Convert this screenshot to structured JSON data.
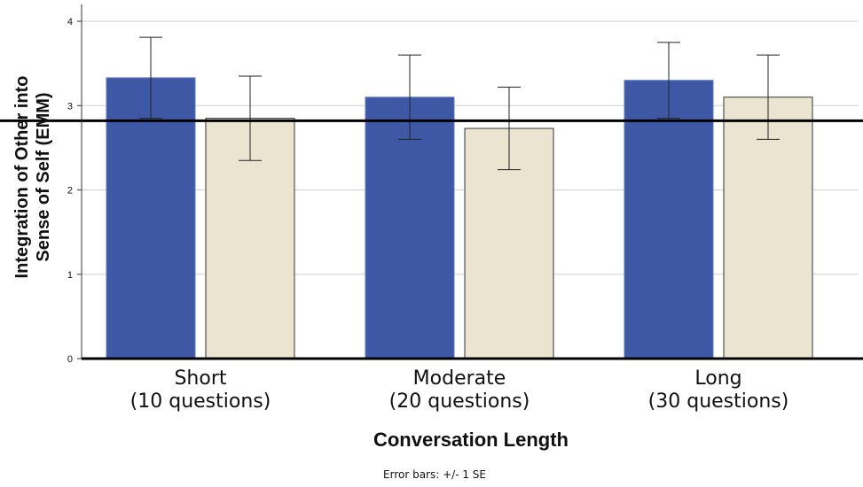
{
  "chart_data": {
    "type": "bar",
    "categories": [
      [
        "Short",
        "(10 questions)"
      ],
      [
        "Moderate",
        "(20 questions)"
      ],
      [
        "Long",
        "(30 questions)"
      ]
    ],
    "series": [
      {
        "color": "#3f58a6",
        "values": [
          3.33,
          3.1,
          3.3
        ],
        "se": [
          0.48,
          0.5,
          0.45
        ]
      },
      {
        "color": "#ebe4d1",
        "values": [
          2.85,
          2.73,
          3.1
        ],
        "se": [
          0.5,
          0.49,
          0.5
        ]
      }
    ],
    "reference_line": 2.82,
    "xlabel": "Conversation Length",
    "ylabel": [
      "Integration of Other into",
      "Sense of Self (EMM)"
    ],
    "ylim": [
      0,
      4.2
    ],
    "yticks": [
      0,
      1,
      2,
      3,
      4
    ],
    "grid": true,
    "note": "Error bars: +/- 1 SE"
  }
}
